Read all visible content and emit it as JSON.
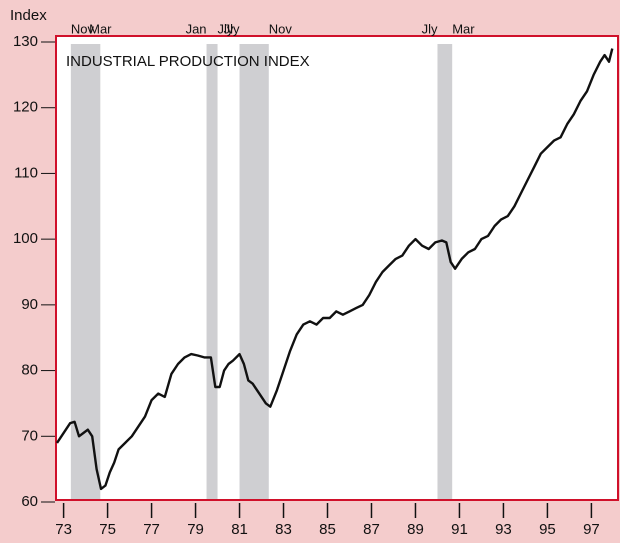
{
  "chart_data": {
    "type": "line",
    "title": "INDUSTRIAL PRODUCTION INDEX",
    "y_label": "Index",
    "color": "#111111",
    "recession_color": "#cfcfd2",
    "recessions": [
      {
        "start": 73.83,
        "end": 75.17,
        "start_label": "Nov",
        "end_label": "Mar"
      },
      {
        "start": 80.0,
        "end": 80.5,
        "start_label": "Jan",
        "end_label": "Jly"
      },
      {
        "start": 81.5,
        "end": 82.83,
        "start_label": "Jly",
        "end_label": "Nov"
      },
      {
        "start": 90.5,
        "end": 91.17,
        "start_label": "Jly",
        "end_label": "Mar"
      }
    ],
    "x": [
      73.2,
      73.4,
      73.6,
      73.8,
      74.0,
      74.2,
      74.4,
      74.6,
      74.8,
      75.0,
      75.2,
      75.4,
      75.6,
      75.8,
      76.0,
      76.3,
      76.6,
      76.9,
      77.2,
      77.5,
      77.8,
      78.1,
      78.4,
      78.7,
      79.0,
      79.3,
      79.6,
      79.9,
      80.2,
      80.4,
      80.6,
      80.8,
      81.0,
      81.2,
      81.5,
      81.7,
      81.9,
      82.1,
      82.4,
      82.7,
      82.9,
      83.2,
      83.5,
      83.8,
      84.1,
      84.4,
      84.7,
      85.0,
      85.3,
      85.6,
      85.9,
      86.2,
      86.5,
      86.8,
      87.1,
      87.4,
      87.7,
      88.0,
      88.3,
      88.6,
      88.9,
      89.2,
      89.5,
      89.8,
      90.1,
      90.4,
      90.7,
      90.9,
      91.1,
      91.3,
      91.6,
      91.9,
      92.2,
      92.5,
      92.8,
      93.1,
      93.4,
      93.7,
      94.0,
      94.3,
      94.6,
      94.9,
      95.2,
      95.5,
      95.8,
      96.1,
      96.4,
      96.7,
      97.0,
      97.3,
      97.6,
      97.9,
      98.1,
      98.3,
      98.45
    ],
    "values": [
      69,
      70,
      71,
      72,
      72.2,
      70,
      70.5,
      71,
      70,
      65,
      62,
      62.5,
      64.5,
      66,
      68,
      69,
      70,
      71.5,
      73,
      75.5,
      76.5,
      76,
      79.5,
      81,
      82,
      82.5,
      82.3,
      82,
      82,
      77.5,
      77.5,
      80,
      81,
      81.5,
      82.5,
      81,
      78.5,
      78,
      76.5,
      75,
      74.5,
      77,
      80,
      83,
      85.5,
      87,
      87.5,
      87,
      88,
      88,
      89,
      88.5,
      89,
      89.5,
      90,
      91.5,
      93.5,
      95,
      96,
      97,
      97.5,
      99,
      100,
      99,
      98.5,
      99.5,
      99.8,
      99.5,
      96.5,
      95.5,
      97,
      98,
      98.5,
      100,
      100.5,
      102,
      103,
      103.5,
      105,
      107,
      109,
      111,
      113,
      114,
      115,
      115.5,
      117.5,
      119,
      121,
      122.5,
      125,
      127,
      128,
      127,
      129
    ],
    "xlim": [
      73.2,
      98.8
    ],
    "xticks": [
      {
        "value": 73.5,
        "label": "73"
      },
      {
        "value": 75.5,
        "label": "75"
      },
      {
        "value": 77.5,
        "label": "77"
      },
      {
        "value": 79.5,
        "label": "79"
      },
      {
        "value": 81.5,
        "label": "81"
      },
      {
        "value": 83.5,
        "label": "83"
      },
      {
        "value": 85.5,
        "label": "85"
      },
      {
        "value": 87.5,
        "label": "87"
      },
      {
        "value": 89.5,
        "label": "89"
      },
      {
        "value": 91.5,
        "label": "91"
      },
      {
        "value": 93.5,
        "label": "93"
      },
      {
        "value": 95.5,
        "label": "95"
      },
      {
        "value": 97.5,
        "label": "97"
      }
    ],
    "ylim": [
      60,
      130
    ],
    "yticks": [
      60,
      70,
      80,
      90,
      100,
      110,
      120,
      130
    ]
  }
}
